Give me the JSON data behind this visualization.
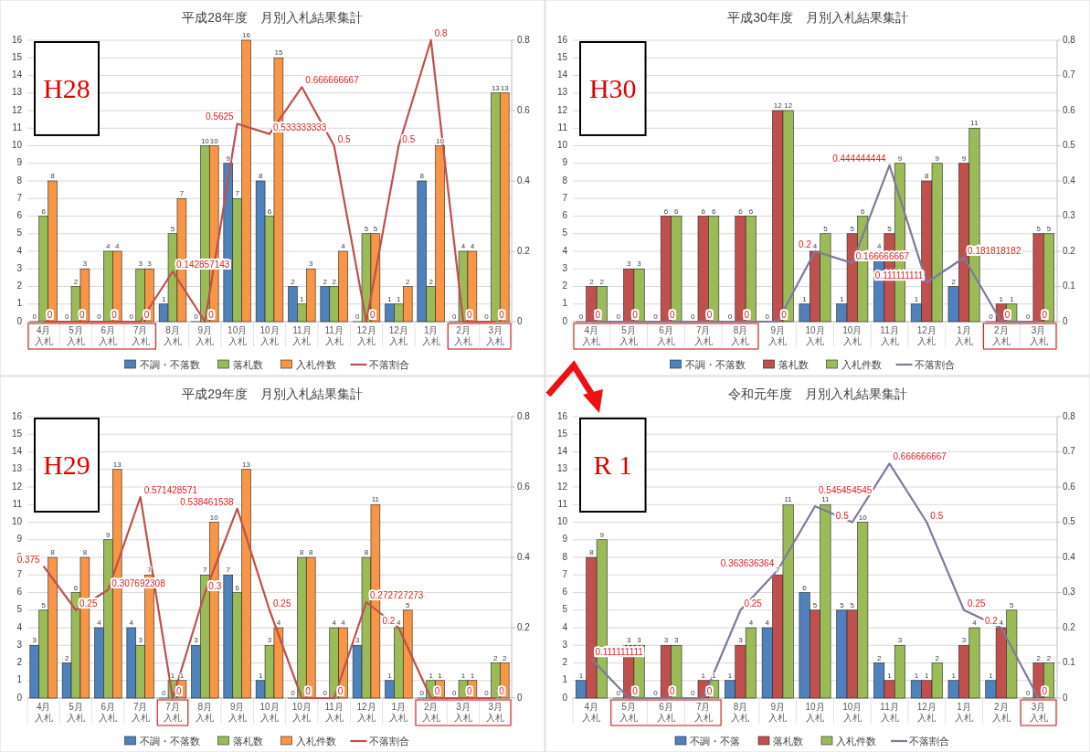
{
  "chart_data": [
    {
      "type": "bar",
      "title": "平成28年度　月別入札結果集計",
      "categories": [
        "4月入札",
        "5月入札",
        "6月入札",
        "7月入札",
        "8月入札",
        "9月入札",
        "10月入札",
        "10月入札",
        "11月入札",
        "11月入札",
        "12月入札",
        "12月入札",
        "1月入札",
        "2月入札",
        "3月入札"
      ],
      "series": [
        {
          "name": "不調・不落数",
          "color": "#4f81bd",
          "values": [
            0,
            0,
            0,
            0,
            1,
            0,
            9,
            8,
            2,
            2,
            0,
            1,
            8,
            0,
            0
          ]
        },
        {
          "name": "落札数",
          "color": "#9bbb59",
          "values": [
            6,
            2,
            4,
            3,
            5,
            10,
            7,
            6,
            1,
            2,
            5,
            1,
            2,
            4,
            13
          ]
        },
        {
          "name": "入札件数",
          "color": "#f79646",
          "values": [
            8,
            3,
            4,
            3,
            7,
            10,
            16,
            15,
            3,
            4,
            5,
            2,
            10,
            4,
            13
          ]
        },
        {
          "name": "不落割合",
          "type": "line",
          "axis": "y2",
          "color": "#c0504d",
          "values": [
            0,
            0,
            0,
            0,
            0.142857143,
            0,
            0.5625,
            0.533333333,
            0.666666667,
            0.5,
            0,
            0.5,
            0.8,
            0,
            0
          ]
        }
      ],
      "ylim": [
        0,
        16
      ],
      "yticks": [
        0,
        1,
        2,
        3,
        4,
        5,
        6,
        7,
        8,
        9,
        10,
        11,
        12,
        13,
        14,
        15,
        16
      ],
      "y2lim": [
        0,
        0.8
      ],
      "y2ticks": [
        0,
        0.2,
        0.4,
        0.6,
        0.8
      ],
      "grid": "y",
      "legend": "bottom",
      "data_labels": true,
      "annotations": [
        "H28"
      ]
    },
    {
      "type": "bar",
      "title": "平成30年度　月別入札結果集計",
      "categories": [
        "4月入札",
        "5月入札",
        "6月入札",
        "7月入札",
        "8月入札",
        "9月入札",
        "10月入札",
        "10月入札",
        "11月入札",
        "12月入札",
        "1月入札",
        "2月入札",
        "3月入札"
      ],
      "series": [
        {
          "name": "不調・不落数",
          "color": "#4f81bd",
          "values": [
            0,
            0,
            0,
            0,
            0,
            0,
            1,
            1,
            4,
            1,
            2,
            0,
            0
          ]
        },
        {
          "name": "落札数",
          "color": "#c0504d",
          "values": [
            2,
            3,
            6,
            6,
            6,
            12,
            4,
            5,
            5,
            8,
            9,
            1,
            5
          ]
        },
        {
          "name": "入札件数",
          "color": "#9bbb59",
          "values": [
            2,
            3,
            6,
            6,
            6,
            12,
            5,
            6,
            9,
            9,
            11,
            1,
            5
          ]
        },
        {
          "name": "不落割合",
          "type": "line",
          "axis": "y2",
          "color": "#7e7a9a",
          "values": [
            0,
            0,
            0,
            0,
            0,
            0,
            0.2,
            0.166666667,
            0.444444444,
            0.111111111,
            0.181818182,
            0,
            0
          ]
        }
      ],
      "ylim": [
        0,
        16
      ],
      "yticks": [
        0,
        1,
        2,
        3,
        4,
        5,
        6,
        7,
        8,
        9,
        10,
        11,
        12,
        13,
        14,
        15,
        16
      ],
      "y2lim": [
        0,
        0.8
      ],
      "y2ticks": [
        0,
        0.1,
        0.2,
        0.3,
        0.4,
        0.5,
        0.6,
        0.7,
        0.8
      ],
      "grid": "y",
      "legend": "bottom",
      "data_labels": true,
      "annotations": [
        "H30"
      ]
    },
    {
      "type": "bar",
      "title": "平成29年度　月別入札結果集計",
      "categories": [
        "4月入札",
        "5月入札",
        "6月入札",
        "7月入札",
        "7月入札",
        "8月入札",
        "9月入札",
        "10月入札",
        "10月入札",
        "11月入札",
        "12月入札",
        "1月入札",
        "2月入札",
        "3月入札",
        "3月入札"
      ],
      "series": [
        {
          "name": "不調・不落数",
          "color": "#4f81bd",
          "values": [
            3,
            2,
            4,
            4,
            0,
            3,
            7,
            1,
            0,
            0,
            3,
            1,
            0,
            0,
            0
          ]
        },
        {
          "name": "落札数",
          "color": "#9bbb59",
          "values": [
            5,
            6,
            9,
            3,
            1,
            7,
            6,
            3,
            8,
            4,
            8,
            4,
            1,
            1,
            2
          ]
        },
        {
          "name": "入札件数",
          "color": "#f79646",
          "values": [
            8,
            8,
            13,
            7,
            1,
            10,
            13,
            4,
            8,
            4,
            11,
            5,
            1,
            1,
            2
          ]
        },
        {
          "name": "不落割合",
          "type": "line",
          "axis": "y2",
          "color": "#c0504d",
          "values": [
            0.375,
            0.25,
            0.307692308,
            0.571428571,
            0,
            0.3,
            0.538461538,
            0.25,
            0,
            0,
            0.272727273,
            0.2,
            0,
            0,
            0
          ]
        }
      ],
      "ylim": [
        0,
        16
      ],
      "yticks": [
        0,
        1,
        2,
        3,
        4,
        5,
        6,
        7,
        8,
        9,
        10,
        11,
        12,
        13,
        14,
        15,
        16
      ],
      "y2lim": [
        0,
        0.8
      ],
      "y2ticks": [
        0,
        0.2,
        0.4,
        0.6,
        0.8
      ],
      "grid": "y",
      "legend": "bottom",
      "data_labels": true,
      "annotations": [
        "H29"
      ]
    },
    {
      "type": "bar",
      "title": "令和元年度　月別入札結果集計",
      "categories": [
        "4月入札",
        "5月入札",
        "6月入札",
        "7月入札",
        "8月入札",
        "9月入札",
        "10月入札",
        "10月入札",
        "11月入札",
        "12月入札",
        "1月入札",
        "2月入札",
        "3月入札"
      ],
      "series": [
        {
          "name": "不調・不落",
          "color": "#4f81bd",
          "values": [
            1,
            0,
            0,
            0,
            1,
            4,
            6,
            5,
            2,
            1,
            1,
            1,
            0
          ]
        },
        {
          "name": "落札数",
          "color": "#c0504d",
          "values": [
            8,
            3,
            3,
            1,
            3,
            7,
            5,
            5,
            1,
            1,
            3,
            4,
            2
          ]
        },
        {
          "name": "入札件数",
          "color": "#9bbb59",
          "values": [
            9,
            3,
            3,
            1,
            4,
            11,
            11,
            10,
            3,
            2,
            4,
            5,
            2
          ]
        },
        {
          "name": "不落割合",
          "type": "line",
          "axis": "y2",
          "color": "#7e7a9a",
          "values": [
            0.111111111,
            0,
            0,
            0,
            0.25,
            0.363636364,
            0.545454545,
            0.5,
            0.666666667,
            0.5,
            0.25,
            0.2,
            0
          ]
        }
      ],
      "ylim": [
        0,
        16
      ],
      "yticks": [
        0,
        1,
        2,
        3,
        4,
        5,
        6,
        7,
        8,
        9,
        10,
        11,
        12,
        13,
        14,
        15,
        16
      ],
      "y2lim": [
        0,
        0.8
      ],
      "y2ticks": [
        0,
        0.1,
        0.2,
        0.3,
        0.4,
        0.5,
        0.6,
        0.7,
        0.8
      ],
      "grid": "y",
      "legend": "bottom",
      "data_labels": true,
      "annotations": [
        "R 1"
      ]
    }
  ]
}
